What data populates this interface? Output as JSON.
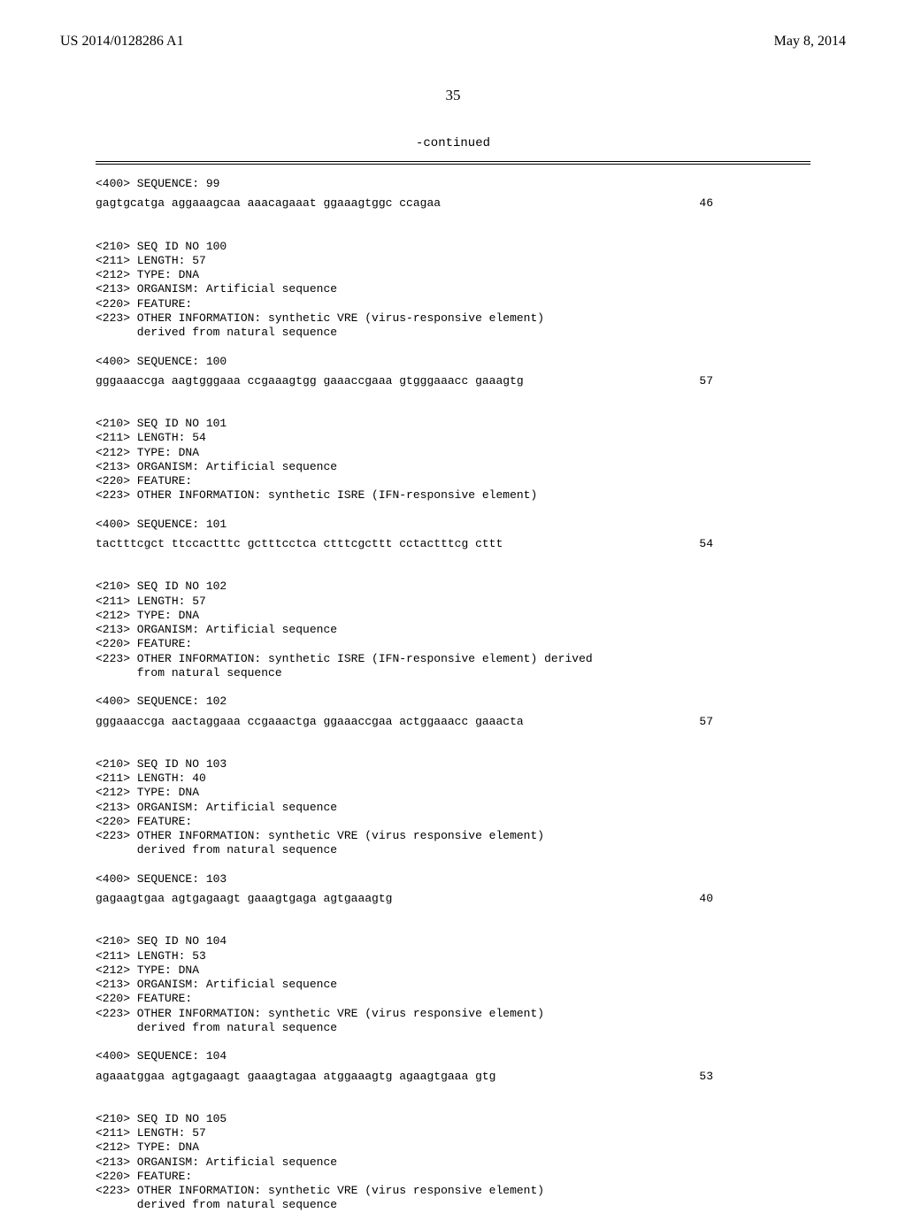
{
  "header": {
    "pub_number": "US 2014/0128286 A1",
    "pub_date": "May 8, 2014"
  },
  "page_number": "35",
  "continued_label": "-continued",
  "entries": [
    {
      "pre_lines": [
        "<400> SEQUENCE: 99"
      ],
      "sequence": "gagtgcatga aggaaagcaa aaacagaaat ggaaagtggc ccagaa",
      "seq_len": "46"
    },
    {
      "pre_lines": [
        "<210> SEQ ID NO 100",
        "<211> LENGTH: 57",
        "<212> TYPE: DNA",
        "<213> ORGANISM: Artificial sequence",
        "<220> FEATURE:",
        "<223> OTHER INFORMATION: synthetic VRE (virus-responsive element)",
        "      derived from natural sequence",
        "",
        "<400> SEQUENCE: 100"
      ],
      "sequence": "gggaaaccga aagtgggaaa ccgaaagtgg gaaaccgaaa gtgggaaacc gaaagtg",
      "seq_len": "57"
    },
    {
      "pre_lines": [
        "<210> SEQ ID NO 101",
        "<211> LENGTH: 54",
        "<212> TYPE: DNA",
        "<213> ORGANISM: Artificial sequence",
        "<220> FEATURE:",
        "<223> OTHER INFORMATION: synthetic ISRE (IFN-responsive element)",
        "",
        "<400> SEQUENCE: 101"
      ],
      "sequence": "tactttcgct ttccactttc gctttcctca ctttcgcttt cctactttcg cttt",
      "seq_len": "54"
    },
    {
      "pre_lines": [
        "<210> SEQ ID NO 102",
        "<211> LENGTH: 57",
        "<212> TYPE: DNA",
        "<213> ORGANISM: Artificial sequence",
        "<220> FEATURE:",
        "<223> OTHER INFORMATION: synthetic ISRE (IFN-responsive element) derived",
        "      from natural sequence",
        "",
        "<400> SEQUENCE: 102"
      ],
      "sequence": "gggaaaccga aactaggaaa ccgaaactga ggaaaccgaa actggaaacc gaaacta",
      "seq_len": "57"
    },
    {
      "pre_lines": [
        "<210> SEQ ID NO 103",
        "<211> LENGTH: 40",
        "<212> TYPE: DNA",
        "<213> ORGANISM: Artificial sequence",
        "<220> FEATURE:",
        "<223> OTHER INFORMATION: synthetic VRE (virus responsive element)",
        "      derived from natural sequence",
        "",
        "<400> SEQUENCE: 103"
      ],
      "sequence": "gagaagtgaa agtgagaagt gaaagtgaga agtgaaagtg",
      "seq_len": "40"
    },
    {
      "pre_lines": [
        "<210> SEQ ID NO 104",
        "<211> LENGTH: 53",
        "<212> TYPE: DNA",
        "<213> ORGANISM: Artificial sequence",
        "<220> FEATURE:",
        "<223> OTHER INFORMATION: synthetic VRE (virus responsive element)",
        "      derived from natural sequence",
        "",
        "<400> SEQUENCE: 104"
      ],
      "sequence": "agaaatggaa agtgagaagt gaaagtagaa atggaaagtg agaagtgaaa gtg",
      "seq_len": "53"
    },
    {
      "pre_lines": [
        "<210> SEQ ID NO 105",
        "<211> LENGTH: 57",
        "<212> TYPE: DNA",
        "<213> ORGANISM: Artificial sequence",
        "<220> FEATURE:",
        "<223> OTHER INFORMATION: synthetic VRE (virus responsive element)",
        "      derived from natural sequence"
      ],
      "sequence": null,
      "seq_len": null
    }
  ]
}
